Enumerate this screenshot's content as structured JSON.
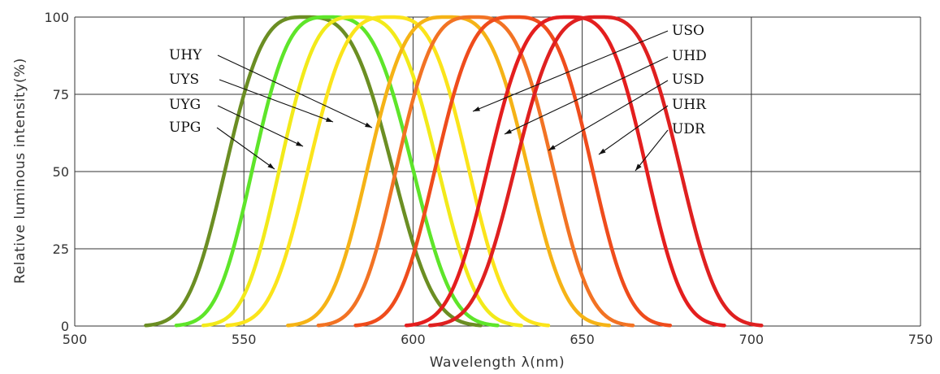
{
  "chart_data": {
    "type": "line",
    "title": "",
    "xlabel": "Wavelength λ(nm)",
    "ylabel": "Relative luminous intensity(%)",
    "xlim": [
      500,
      750
    ],
    "ylim": [
      0,
      100
    ],
    "xticks": [
      "500",
      "550",
      "600",
      "650",
      "700",
      "750"
    ],
    "yticks": [
      "0",
      "25",
      "50",
      "75",
      "100"
    ],
    "grid": true,
    "series": [
      {
        "name": "UPG",
        "color": "#6b8e23",
        "peak": 568,
        "lo": 521,
        "hi": 620
      },
      {
        "name": "UYG",
        "color": "#5ee52a",
        "peak": 575,
        "lo": 530,
        "hi": 625
      },
      {
        "name": "UYS",
        "color": "#f2ea1a",
        "peak": 583,
        "lo": 538,
        "hi": 632
      },
      {
        "name": "UHY",
        "color": "#fbe41b",
        "peak": 593,
        "lo": 545,
        "hi": 640
      },
      {
        "name": "USO",
        "color": "#f5b316",
        "peak": 610,
        "lo": 563,
        "hi": 658
      },
      {
        "name": "UHD",
        "color": "#f27324",
        "peak": 618,
        "lo": 572,
        "hi": 665
      },
      {
        "name": "USD",
        "color": "#ef4c1c",
        "peak": 630,
        "lo": 583,
        "hi": 676
      },
      {
        "name": "UHR",
        "color": "#e41e1e",
        "peak": 646,
        "lo": 598,
        "hi": 692
      },
      {
        "name": "UDR",
        "color": "#df2020",
        "peak": 655,
        "lo": 605,
        "hi": 703
      }
    ]
  }
}
